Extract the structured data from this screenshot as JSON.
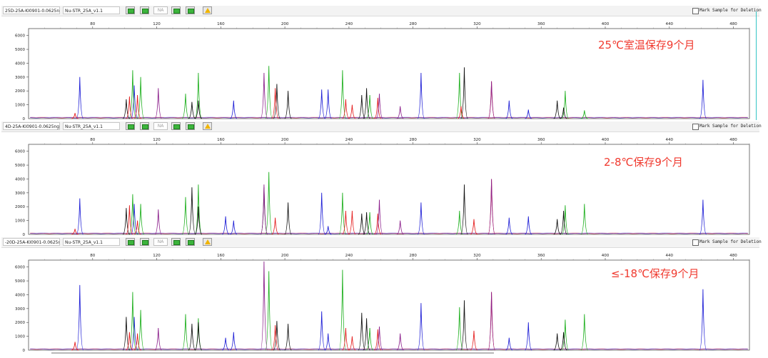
{
  "header": {
    "mark_label": "Mark Sample for Deletion",
    "na_label": "NA"
  },
  "panels": [
    {
      "sample": "25D-25A-KI0901-0.0625ng",
      "panel": "Nu-STR_25A_v1.1",
      "annotation": "25℃室温保存9个月"
    },
    {
      "sample": "4D-25A-KI0901-0.0625ng",
      "panel": "Nu-STR_25A_v1.1",
      "annotation": "2-8℃保存9个月"
    },
    {
      "sample": "-20D-25A-KI0901-0.0625ng",
      "panel": "Nu-STR_25A_v1.1",
      "annotation": "≤-18℃保存9个月"
    }
  ],
  "colors": {
    "blue": "#1f1fd6",
    "green": "#1fb01f",
    "black": "#111111",
    "red": "#e41d1d",
    "purple": "#8b1f8b",
    "annotation": "#f03a2f",
    "frame": "#33c5c5"
  },
  "chart_data": [
    {
      "type": "line",
      "title": "25℃室温保存9个月",
      "xlim": [
        40,
        490
      ],
      "ylim": [
        0,
        6500
      ],
      "x_ticks": [
        80,
        120,
        160,
        200,
        240,
        280,
        320,
        360,
        400,
        440,
        480
      ],
      "y_ticks": [
        1000,
        2000,
        3000,
        4000,
        5000,
        6000
      ],
      "series": [
        {
          "color": "blue",
          "peaks": [
            [
              72,
              3000
            ],
            [
              106,
              2400
            ],
            [
              168,
              1300
            ],
            [
              223,
              2100
            ],
            [
              227,
              2100
            ],
            [
              285,
              3300
            ],
            [
              340,
              1300
            ],
            [
              352,
              650
            ],
            [
              461,
              2800
            ]
          ]
        },
        {
          "color": "green",
          "peaks": [
            [
              105,
              3500
            ],
            [
              110,
              3000
            ],
            [
              138,
              1800
            ],
            [
              146,
              3300
            ],
            [
              190,
              3800
            ],
            [
              236,
              3500
            ],
            [
              253,
              1700
            ],
            [
              309,
              3300
            ],
            [
              375,
              2000
            ],
            [
              387,
              600
            ]
          ]
        },
        {
          "color": "black",
          "peaks": [
            [
              101,
              1400
            ],
            [
              142,
              1200
            ],
            [
              146,
              1300
            ],
            [
              195,
              2500
            ],
            [
              202,
              2000
            ],
            [
              248,
              1700
            ],
            [
              251,
              2200
            ],
            [
              312,
              3700
            ],
            [
              370,
              1300
            ],
            [
              374,
              800
            ]
          ]
        },
        {
          "color": "red",
          "peaks": [
            [
              69,
              400
            ],
            [
              103,
              1600
            ],
            [
              108,
              1700
            ],
            [
              194,
              2200
            ],
            [
              238,
              1400
            ],
            [
              242,
              1000
            ],
            [
              258,
              1500
            ],
            [
              310,
              900
            ],
            [
              329,
              2700
            ]
          ]
        },
        {
          "color": "purple",
          "peaks": [
            [
              121,
              2200
            ],
            [
              187,
              3300
            ],
            [
              259,
              1800
            ],
            [
              272,
              900
            ],
            [
              329,
              2700
            ]
          ]
        }
      ]
    },
    {
      "type": "line",
      "title": "2-8℃保存9个月",
      "xlim": [
        40,
        490
      ],
      "ylim": [
        0,
        6500
      ],
      "x_ticks": [
        80,
        120,
        160,
        200,
        240,
        280,
        320,
        360,
        400,
        440,
        480
      ],
      "y_ticks": [
        1000,
        2000,
        3000,
        4000,
        5000,
        6000
      ],
      "series": [
        {
          "color": "blue",
          "peaks": [
            [
              72,
              2600
            ],
            [
              106,
              2200
            ],
            [
              163,
              1300
            ],
            [
              168,
              1000
            ],
            [
              223,
              3000
            ],
            [
              227,
              600
            ],
            [
              285,
              2300
            ],
            [
              340,
              1200
            ],
            [
              352,
              1300
            ],
            [
              461,
              2500
            ]
          ]
        },
        {
          "color": "green",
          "peaks": [
            [
              105,
              2900
            ],
            [
              110,
              2200
            ],
            [
              138,
              2700
            ],
            [
              146,
              3600
            ],
            [
              190,
              4500
            ],
            [
              236,
              3000
            ],
            [
              253,
              1600
            ],
            [
              309,
              1700
            ],
            [
              375,
              2100
            ],
            [
              387,
              2200
            ]
          ]
        },
        {
          "color": "black",
          "peaks": [
            [
              101,
              1900
            ],
            [
              142,
              3400
            ],
            [
              146,
              2000
            ],
            [
              187,
              3400
            ],
            [
              202,
              2300
            ],
            [
              248,
              1500
            ],
            [
              251,
              1600
            ],
            [
              312,
              3600
            ],
            [
              370,
              1100
            ],
            [
              374,
              1700
            ]
          ]
        },
        {
          "color": "red",
          "peaks": [
            [
              69,
              400
            ],
            [
              103,
              2100
            ],
            [
              108,
              1000
            ],
            [
              194,
              1200
            ],
            [
              238,
              1700
            ],
            [
              242,
              1700
            ],
            [
              258,
              1500
            ],
            [
              318,
              1100
            ],
            [
              329,
              4000
            ]
          ]
        },
        {
          "color": "purple",
          "peaks": [
            [
              121,
              1800
            ],
            [
              187,
              3600
            ],
            [
              259,
              2500
            ],
            [
              272,
              1000
            ],
            [
              329,
              4000
            ]
          ]
        }
      ]
    },
    {
      "type": "line",
      "title": "≤-18℃保存9个月",
      "xlim": [
        40,
        490
      ],
      "ylim": [
        0,
        6500
      ],
      "x_ticks": [
        80,
        120,
        160,
        200,
        240,
        280,
        320,
        360,
        400,
        440,
        480
      ],
      "y_ticks": [
        1000,
        2000,
        3000,
        4000,
        5000,
        6000
      ],
      "series": [
        {
          "color": "blue",
          "peaks": [
            [
              72,
              4700
            ],
            [
              106,
              2400
            ],
            [
              163,
              900
            ],
            [
              168,
              1300
            ],
            [
              223,
              2800
            ],
            [
              227,
              1200
            ],
            [
              285,
              3400
            ],
            [
              340,
              900
            ],
            [
              352,
              2000
            ],
            [
              461,
              4400
            ]
          ]
        },
        {
          "color": "green",
          "peaks": [
            [
              105,
              4200
            ],
            [
              110,
              2900
            ],
            [
              138,
              2600
            ],
            [
              146,
              2300
            ],
            [
              190,
              5700
            ],
            [
              236,
              5800
            ],
            [
              253,
              1600
            ],
            [
              309,
              3100
            ],
            [
              375,
              2200
            ],
            [
              387,
              2600
            ]
          ]
        },
        {
          "color": "black",
          "peaks": [
            [
              101,
              2400
            ],
            [
              142,
              1900
            ],
            [
              146,
              2000
            ],
            [
              195,
              2100
            ],
            [
              202,
              1900
            ],
            [
              248,
              2700
            ],
            [
              251,
              2300
            ],
            [
              312,
              3600
            ],
            [
              370,
              1200
            ],
            [
              374,
              1300
            ]
          ]
        },
        {
          "color": "red",
          "peaks": [
            [
              69,
              600
            ],
            [
              103,
              1300
            ],
            [
              108,
              1200
            ],
            [
              194,
              1800
            ],
            [
              238,
              1600
            ],
            [
              242,
              1000
            ],
            [
              258,
              1500
            ],
            [
              318,
              1400
            ],
            [
              329,
              4200
            ]
          ]
        },
        {
          "color": "purple",
          "peaks": [
            [
              121,
              1600
            ],
            [
              187,
              6400
            ],
            [
              259,
              1700
            ],
            [
              272,
              1200
            ],
            [
              329,
              4200
            ]
          ]
        }
      ]
    }
  ]
}
